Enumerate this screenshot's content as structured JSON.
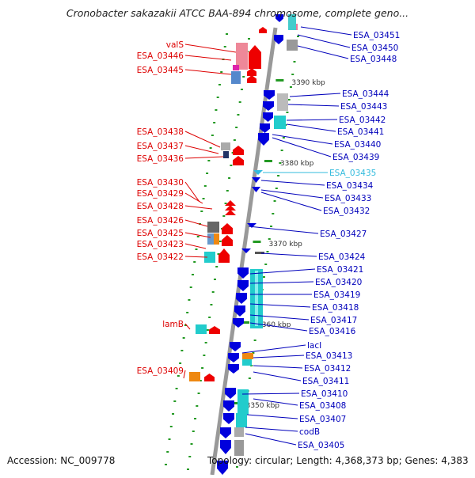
{
  "title": "Cronobacter sakazakii ATCC BAA-894 chromosome, complete geno...",
  "footer": {
    "accession": "Accession: NC_009778",
    "topology": "Topology: circular; Length: 4,368,373 bp; Genes: 4,383"
  },
  "colors": {
    "left_label": "#dd0000",
    "right_label": "#0000bb",
    "highlight_label": "#33bbdd",
    "backbone": "#999999",
    "forward_gene": "#ee0000",
    "reverse_gene": "#0000dd",
    "tick": "#229922"
  },
  "scale_labels": [
    "3390 kbp",
    "3380 kbp",
    "3370 kbp",
    "3360 kbp",
    "3350 kbp"
  ],
  "left_labels": [
    "valS",
    "ESA_03446",
    "ESA_03445",
    "ESA_03438",
    "ESA_03437",
    "ESA_03436",
    "ESA_03430",
    "ESA_03429",
    "ESA_03428",
    "ESA_03426",
    "ESA_03425",
    "ESA_03423",
    "ESA_03422",
    "lamB",
    "ESA_03409"
  ],
  "right_labels": [
    "ESA_03451",
    "ESA_03450",
    "ESA_03448",
    "ESA_03444",
    "ESA_03443",
    "ESA_03442",
    "ESA_03441",
    "ESA_03440",
    "ESA_03439",
    "ESA_03435",
    "ESA_03434",
    "ESA_03433",
    "ESA_03432",
    "ESA_03427",
    "ESA_03424",
    "ESA_03421",
    "ESA_03420",
    "ESA_03419",
    "ESA_03418",
    "ESA_03417",
    "ESA_03416",
    "lacI",
    "ESA_03413",
    "ESA_03412",
    "ESA_03411",
    "ESA_03410",
    "ESA_03408",
    "ESA_03407",
    "codB",
    "ESA_03405"
  ],
  "highlighted_label": "ESA_03435"
}
